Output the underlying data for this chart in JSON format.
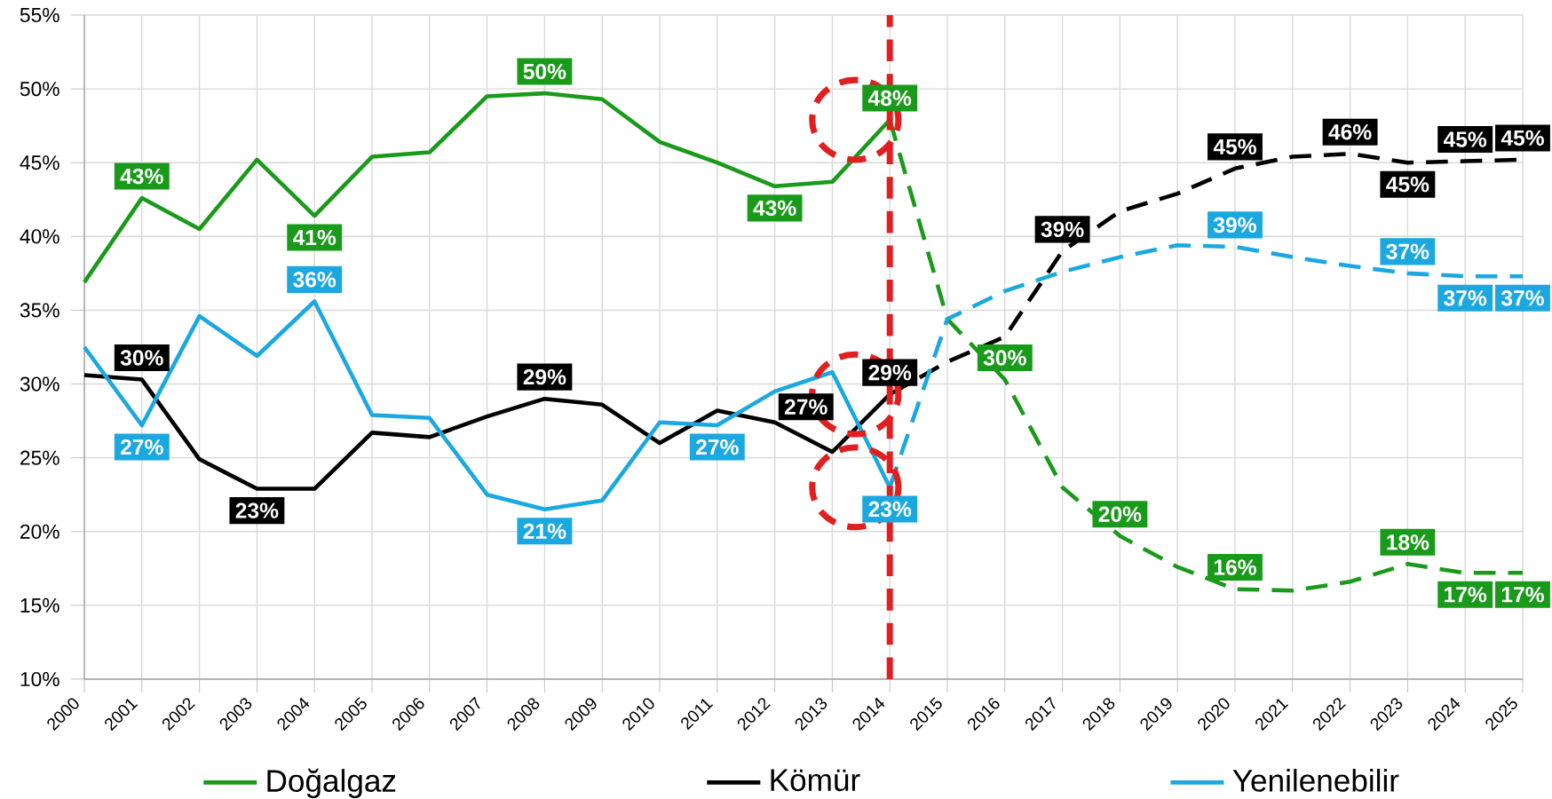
{
  "chart_data": {
    "type": "line",
    "xlim": [
      2000,
      2025
    ],
    "xticks": [
      2000,
      2001,
      2002,
      2003,
      2004,
      2005,
      2006,
      2007,
      2008,
      2009,
      2010,
      2011,
      2012,
      2013,
      2014,
      2015,
      2016,
      2017,
      2018,
      2019,
      2020,
      2021,
      2022,
      2023,
      2024,
      2025
    ],
    "ylim": [
      10,
      55
    ],
    "yticks": [
      {
        "value": 10,
        "label": "10%"
      },
      {
        "value": 15,
        "label": "15%"
      },
      {
        "value": 20,
        "label": "20%"
      },
      {
        "value": 25,
        "label": "25%"
      },
      {
        "value": 30,
        "label": "30%"
      },
      {
        "value": 35,
        "label": "35%"
      },
      {
        "value": 40,
        "label": "40%"
      },
      {
        "value": 45,
        "label": "45%"
      },
      {
        "value": 50,
        "label": "50%"
      },
      {
        "value": 55,
        "label": "55%"
      }
    ],
    "grid": true,
    "legend": "bottom",
    "marker": "none",
    "ref_lines": [
      {
        "axis": "x",
        "value": 2014,
        "color": "#e02020",
        "line_style": "dashed"
      }
    ],
    "series": [
      {
        "name": "Doğalgaz",
        "color": "#1a9a1a",
        "line_style": "solid",
        "x": [
          2000,
          2001,
          2002,
          2003,
          2004,
          2005,
          2006,
          2007,
          2008,
          2009,
          2010,
          2011,
          2012,
          2013,
          2014
        ],
        "values": [
          36.9,
          42.6,
          40.5,
          45.2,
          41.4,
          45.4,
          45.7,
          49.5,
          49.7,
          49.3,
          46.4,
          45.0,
          43.4,
          43.7,
          47.9
        ],
        "value_labels": [
          null,
          "43%",
          null,
          null,
          "41%",
          null,
          null,
          null,
          "50%",
          null,
          null,
          null,
          "43%",
          null,
          "48%"
        ]
      },
      {
        "name": "Kömür",
        "color": "#000000",
        "line_style": "solid",
        "x": [
          2000,
          2001,
          2002,
          2003,
          2004,
          2005,
          2006,
          2007,
          2008,
          2009,
          2010,
          2011,
          2012,
          2013,
          2014
        ],
        "values": [
          30.6,
          30.3,
          24.9,
          22.9,
          22.9,
          26.7,
          26.4,
          27.8,
          29.0,
          28.6,
          26.0,
          28.2,
          27.4,
          25.4,
          29.3
        ],
        "value_labels": [
          null,
          "30%",
          null,
          "23%",
          null,
          null,
          null,
          null,
          "29%",
          null,
          null,
          null,
          "27%",
          null,
          "29%"
        ]
      },
      {
        "name": "Yenilenebilir",
        "color": "#1ba8e0",
        "line_style": "solid",
        "x": [
          2000,
          2001,
          2002,
          2003,
          2004,
          2005,
          2006,
          2007,
          2008,
          2009,
          2010,
          2011,
          2012,
          2013,
          2014
        ],
        "values": [
          32.5,
          27.2,
          34.6,
          31.9,
          35.6,
          27.9,
          27.7,
          22.5,
          21.5,
          22.1,
          27.4,
          27.2,
          29.5,
          30.8,
          23.0
        ],
        "value_labels": [
          null,
          "27%",
          null,
          null,
          "36%",
          null,
          null,
          null,
          "21%",
          null,
          null,
          "27%",
          null,
          null,
          "23%"
        ]
      },
      {
        "color": "#1a9a1a",
        "line_style": "dashed",
        "x": [
          2014,
          2015,
          2016,
          2017,
          2018,
          2019,
          2020,
          2021,
          2022,
          2023,
          2024,
          2025
        ],
        "values": [
          47.9,
          34.4,
          30.3,
          23.0,
          19.7,
          17.6,
          16.1,
          16.0,
          16.6,
          17.8,
          17.2,
          17.2
        ],
        "value_labels": [
          null,
          null,
          "30%",
          null,
          "20%",
          null,
          "16%",
          null,
          null,
          "18%",
          "17%",
          "17%"
        ]
      },
      {
        "color": "#000000",
        "line_style": "dashed",
        "x": [
          2014,
          2015,
          2016,
          2017,
          2018,
          2019,
          2020,
          2021,
          2022,
          2023,
          2024,
          2025
        ],
        "values": [
          29.3,
          31.5,
          33.2,
          39.0,
          41.7,
          42.9,
          44.6,
          45.4,
          45.6,
          45.0,
          45.1,
          45.2
        ],
        "value_labels": [
          null,
          null,
          null,
          "39%",
          null,
          null,
          "45%",
          null,
          "46%",
          "45%",
          "45%",
          "45%"
        ]
      },
      {
        "color": "#1ba8e0",
        "line_style": "dashed",
        "x": [
          2014,
          2015,
          2016,
          2017,
          2018,
          2019,
          2020,
          2021,
          2022,
          2023,
          2024,
          2025
        ],
        "values": [
          23.0,
          34.4,
          36.3,
          37.6,
          38.6,
          39.4,
          39.3,
          38.6,
          38.0,
          37.5,
          37.3,
          37.3
        ],
        "value_labels": [
          null,
          null,
          null,
          null,
          null,
          null,
          "39%",
          null,
          null,
          "37%",
          "37%",
          "37%"
        ]
      }
    ]
  }
}
